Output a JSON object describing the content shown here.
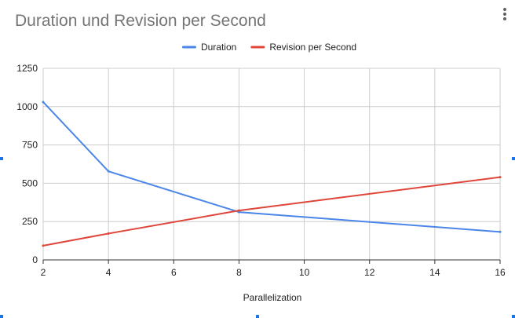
{
  "chart_data": {
    "type": "line",
    "title": "Duration und Revision per Second",
    "xlabel": "Parallelization",
    "ylabel": "",
    "x": [
      2,
      4,
      8,
      16
    ],
    "xlim": [
      2,
      16
    ],
    "ylim": [
      0,
      1250
    ],
    "xticks": [
      "2",
      "4",
      "6",
      "8",
      "10",
      "12",
      "14",
      "16"
    ],
    "yticks": [
      "0",
      "250",
      "500",
      "750",
      "1000",
      "1250"
    ],
    "grid": true,
    "legend_position": "top",
    "series": [
      {
        "name": "Duration",
        "color": "#4a86e8",
        "values": [
          1030,
          578,
          312,
          183
        ]
      },
      {
        "name": "Revision per Second",
        "color": "#e0453a",
        "values": [
          93,
          172,
          322,
          540
        ]
      }
    ]
  },
  "ui": {
    "menu_icon": "more-vert-icon",
    "accent_color": "#1a73e8"
  }
}
